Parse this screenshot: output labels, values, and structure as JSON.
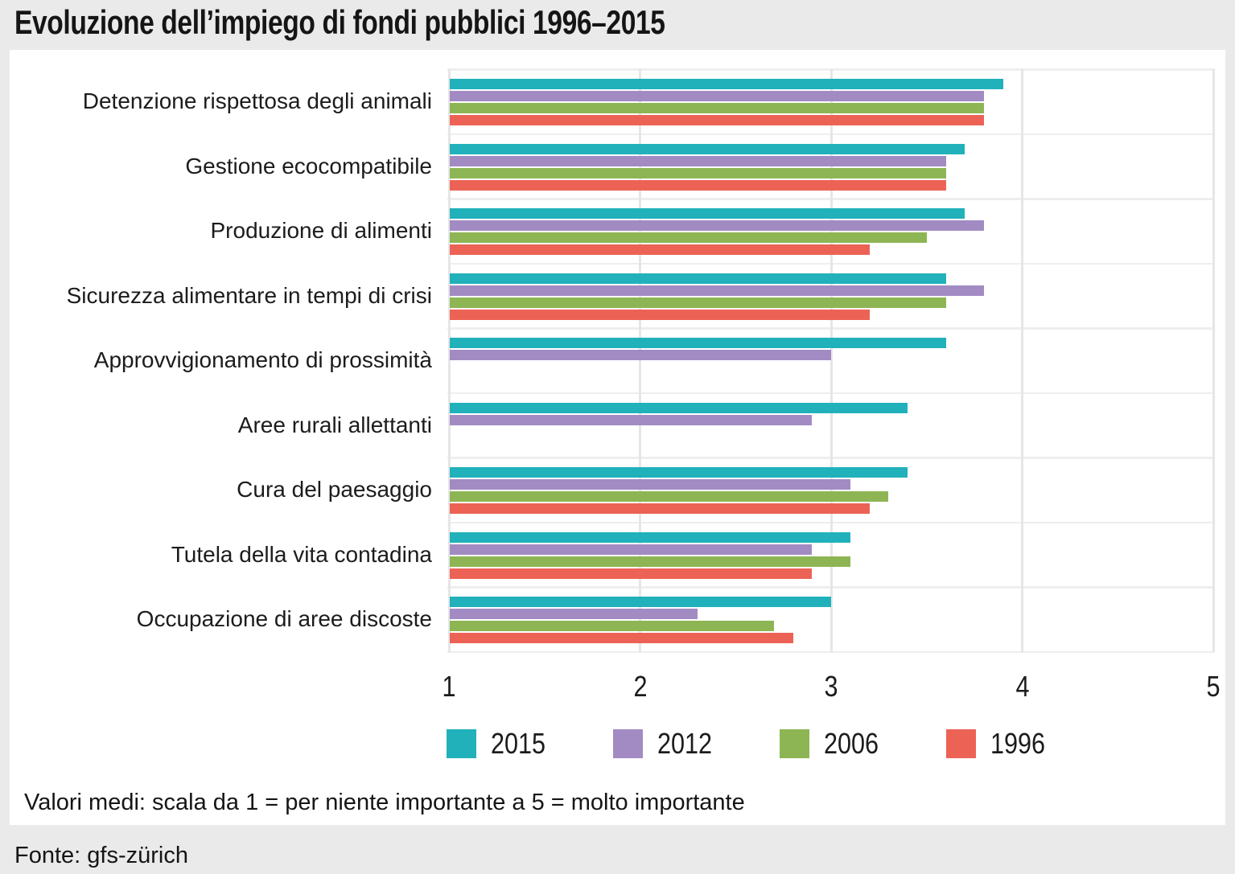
{
  "title": "Evoluzione dell’impiego di fondi pubblici 1996–2015",
  "note": "Valori medi: scala da 1 = per niente importante a 5 = molto importante",
  "source": "Fonte: gfs-zürich",
  "chart_data": {
    "type": "bar",
    "orientation": "horizontal",
    "title": "Evoluzione dell’impiego di fondi pubblici 1996–2015",
    "categories": [
      "Detenzione rispettosa degli animali",
      "Gestione ecocompatibile",
      "Produzione di alimenti",
      "Sicurezza alimentare in tempi di crisi",
      "Approvvigionamento di prossimità",
      "Aree rurali allettanti",
      "Cura del paesaggio",
      "Tutela della vita contadina",
      "Occupazione di aree discoste"
    ],
    "series": [
      {
        "name": "2015",
        "color": "#21b1ba",
        "values": [
          3.9,
          3.7,
          3.7,
          3.6,
          3.6,
          3.4,
          3.4,
          3.1,
          3.0
        ]
      },
      {
        "name": "2012",
        "color": "#a28bc2",
        "values": [
          3.8,
          3.6,
          3.8,
          3.8,
          3.0,
          2.9,
          3.1,
          2.9,
          2.3
        ]
      },
      {
        "name": "2006",
        "color": "#8eb553",
        "values": [
          3.8,
          3.6,
          3.5,
          3.6,
          null,
          null,
          3.3,
          3.1,
          2.7
        ]
      },
      {
        "name": "1996",
        "color": "#ec6355",
        "values": [
          3.8,
          3.6,
          3.2,
          3.2,
          null,
          null,
          3.2,
          2.9,
          2.8
        ]
      }
    ],
    "xlim": [
      1,
      5
    ],
    "xticks": [
      1,
      2,
      3,
      4,
      5
    ],
    "grid": "vertical",
    "legend_position": "bottom",
    "scale_note": "Valori medi: scala da 1 = per niente importante a 5 = molto importante"
  }
}
